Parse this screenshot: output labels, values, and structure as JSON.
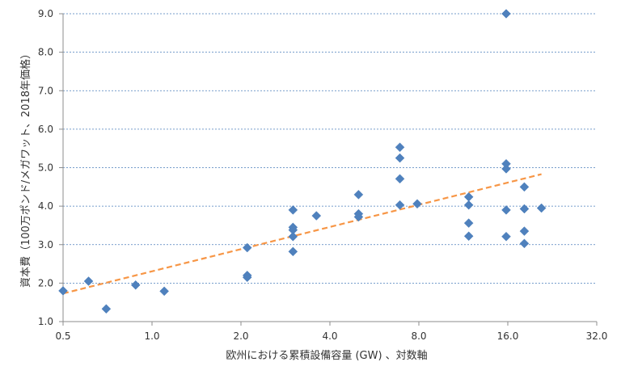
{
  "chart_data": {
    "type": "scatter",
    "title": "",
    "xlabel": "欧州における累積設備容量 (GW) 、対数軸",
    "ylabel": "資本費（100万ポンド/メガワット、2018年価格）",
    "x_scale": "log2",
    "xlim": [
      0.5,
      32.0
    ],
    "ylim": [
      1.0,
      9.0
    ],
    "x_ticks": [
      "0.5",
      "1.0",
      "2.0",
      "4.0",
      "8.0",
      "16.0",
      "32.0"
    ],
    "x_tick_values": [
      0.5,
      1.0,
      2.0,
      4.0,
      8.0,
      16.0,
      32.0
    ],
    "y_ticks": [
      "1.0",
      "2.0",
      "3.0",
      "4.0",
      "5.0",
      "6.0",
      "7.0",
      "8.0",
      "9.0"
    ],
    "y_tick_values": [
      1.0,
      2.0,
      3.0,
      4.0,
      5.0,
      6.0,
      7.0,
      8.0,
      9.0
    ],
    "grid": "horizontal",
    "legend": "none",
    "series": [
      {
        "type": "scatter",
        "marker": "diamond",
        "color": "#4f81bd",
        "points": [
          {
            "x": 0.5,
            "y": 1.8
          },
          {
            "x": 0.61,
            "y": 2.05
          },
          {
            "x": 0.7,
            "y": 1.33
          },
          {
            "x": 0.88,
            "y": 1.95
          },
          {
            "x": 1.1,
            "y": 1.79
          },
          {
            "x": 2.1,
            "y": 2.92
          },
          {
            "x": 2.1,
            "y": 2.2
          },
          {
            "x": 2.1,
            "y": 2.15
          },
          {
            "x": 3.0,
            "y": 3.9
          },
          {
            "x": 3.0,
            "y": 3.45
          },
          {
            "x": 3.0,
            "y": 3.38
          },
          {
            "x": 3.0,
            "y": 3.21
          },
          {
            "x": 3.0,
            "y": 2.82
          },
          {
            "x": 3.6,
            "y": 3.75
          },
          {
            "x": 5.0,
            "y": 4.3
          },
          {
            "x": 5.0,
            "y": 3.8
          },
          {
            "x": 5.0,
            "y": 3.72
          },
          {
            "x": 6.9,
            "y": 5.53
          },
          {
            "x": 6.9,
            "y": 5.25
          },
          {
            "x": 6.9,
            "y": 4.71
          },
          {
            "x": 6.9,
            "y": 4.03
          },
          {
            "x": 7.9,
            "y": 4.06
          },
          {
            "x": 11.8,
            "y": 4.24
          },
          {
            "x": 11.8,
            "y": 4.03
          },
          {
            "x": 11.8,
            "y": 3.56
          },
          {
            "x": 11.8,
            "y": 3.22
          },
          {
            "x": 15.8,
            "y": 9.0
          },
          {
            "x": 15.8,
            "y": 5.1
          },
          {
            "x": 15.8,
            "y": 4.97
          },
          {
            "x": 15.8,
            "y": 3.9
          },
          {
            "x": 15.8,
            "y": 3.21
          },
          {
            "x": 18.2,
            "y": 4.5
          },
          {
            "x": 18.2,
            "y": 3.93
          },
          {
            "x": 18.2,
            "y": 3.35
          },
          {
            "x": 18.2,
            "y": 3.03
          },
          {
            "x": 20.8,
            "y": 3.95
          }
        ]
      },
      {
        "type": "line",
        "style": "dashed",
        "color": "#f79646",
        "points": [
          {
            "x": 0.5,
            "y": 1.73
          },
          {
            "x": 20.8,
            "y": 4.83
          }
        ]
      }
    ]
  }
}
